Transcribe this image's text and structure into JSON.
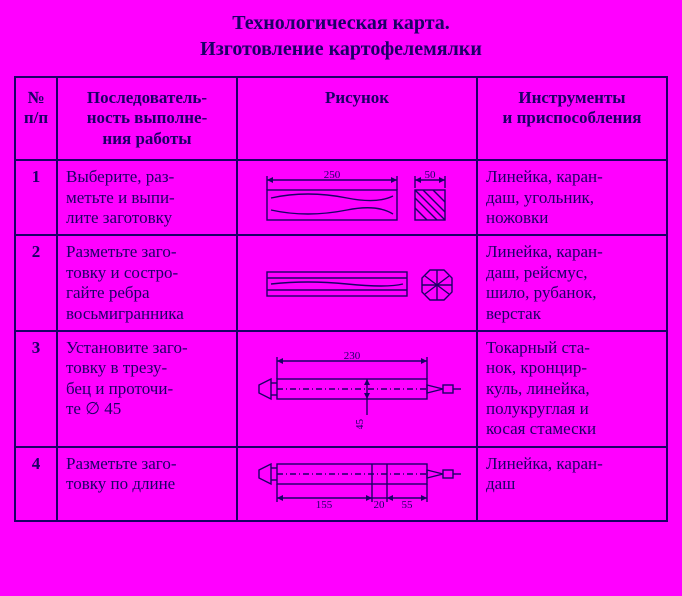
{
  "title_line1": "Технологическая карта.",
  "title_line2": "Изготовление картофелемялки",
  "headers": {
    "num": "№\nп/п",
    "seq": "Последователь-\nность выполне-\nния работы",
    "drawing": "Рисунок",
    "tools": "Инструменты\nи приспособления"
  },
  "rows": [
    {
      "n": "1",
      "seq": "Выберите, раз-\nметьте и выпи-\nлите заготовку",
      "tools": "Линейка, каран-\nдаш, угольник,\nножовки",
      "dims": {
        "len": "250",
        "end": "50"
      }
    },
    {
      "n": "2",
      "seq": "Разметьте заго-\nтовку и состро-\nгайте ребра\nвосьмигранника",
      "tools": "Линейка, каран-\nдаш, рейсмус,\nшило, рубанок,\nверстак",
      "dims": {}
    },
    {
      "n": "3",
      "seq": "Установите заго-\nтовку в трезу-\nбец и проточи-\nте ∅ 45",
      "tools": "Токарный ста-\nнок, кронцир-\nкуль, линейка,\nполукруглая и\nкосая стамески",
      "dims": {
        "len": "230",
        "dia": "∅45"
      }
    },
    {
      "n": "4",
      "seq": "Разметьте заго-\nтовку по длине",
      "tools": "Линейка, каран-\nдаш",
      "dims": {
        "a": "155",
        "b": "20",
        "c": "55"
      }
    }
  ],
  "colors": {
    "background": "#ff00ff",
    "ink": "#1b0066"
  }
}
